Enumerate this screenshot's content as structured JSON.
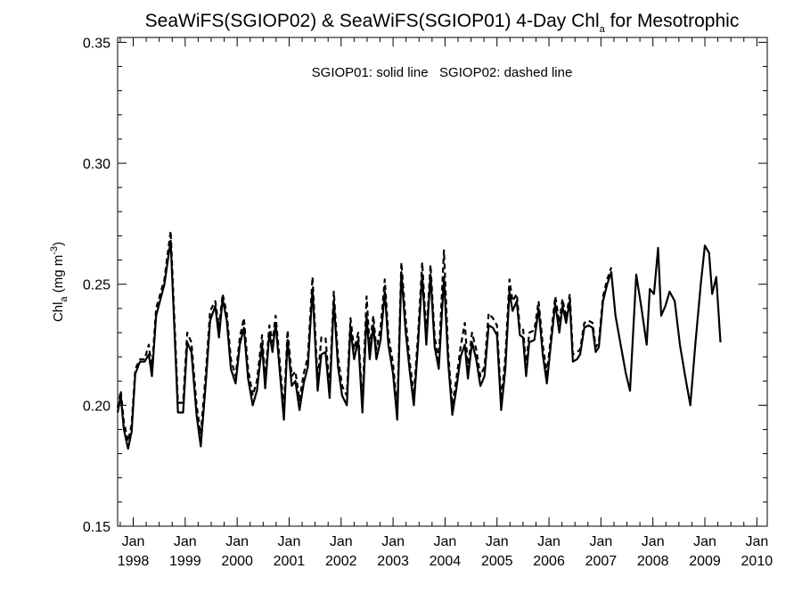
{
  "chart_data": {
    "type": "line",
    "title": "SeaWiFS(SGIOP02) & SeaWiFS(SGIOP01) 4-Day Chl",
    "title_subscript": "a",
    "title_suffix": " for Mesotrophic",
    "ylabel": "Chl",
    "ylabel_subscript": "a",
    "ylabel_units": " (mg m",
    "ylabel_superscript": "-3",
    "ylabel_close": ")",
    "annotation": "SGIOP01: solid line   SGIOP02: dashed line",
    "xlim": [
      1997.7,
      2010.2
    ],
    "ylim": [
      0.15,
      0.352
    ],
    "y_ticks": [
      {
        "value": 0.15,
        "label": "0.15"
      },
      {
        "value": 0.2,
        "label": "0.20"
      },
      {
        "value": 0.25,
        "label": "0.25"
      },
      {
        "value": 0.3,
        "label": "0.30"
      },
      {
        "value": 0.35,
        "label": "0.35"
      }
    ],
    "x_ticks": [
      {
        "value": 1998,
        "month": "Jan",
        "year": "1998"
      },
      {
        "value": 1999,
        "month": "Jan",
        "year": "1999"
      },
      {
        "value": 2000,
        "month": "Jan",
        "year": "2000"
      },
      {
        "value": 2001,
        "month": "Jan",
        "year": "2001"
      },
      {
        "value": 2002,
        "month": "Jan",
        "year": "2002"
      },
      {
        "value": 2003,
        "month": "Jan",
        "year": "2003"
      },
      {
        "value": 2004,
        "month": "Jan",
        "year": "2004"
      },
      {
        "value": 2005,
        "month": "Jan",
        "year": "2005"
      },
      {
        "value": 2006,
        "month": "Jan",
        "year": "2006"
      },
      {
        "value": 2007,
        "month": "Jan",
        "year": "2007"
      },
      {
        "value": 2008,
        "month": "Jan",
        "year": "2008"
      },
      {
        "value": 2009,
        "month": "Jan",
        "year": "2009"
      },
      {
        "value": 2010,
        "month": "Jan",
        "year": "2010"
      }
    ],
    "grid": false,
    "series": [
      {
        "name": "SGIOP01",
        "style": "solid",
        "color": "#000000",
        "points": [
          [
            1997.7,
            0.197
          ],
          [
            1997.76,
            0.204
          ],
          [
            1997.82,
            0.19
          ],
          [
            1997.9,
            0.182
          ],
          [
            1997.97,
            0.189
          ],
          [
            1998.04,
            0.213
          ],
          [
            1998.13,
            0.218
          ],
          [
            1998.22,
            0.218
          ],
          [
            1998.3,
            0.221
          ],
          [
            1998.36,
            0.212
          ],
          [
            1998.44,
            0.237
          ],
          [
            1998.6,
            0.25
          ],
          [
            1998.72,
            0.268
          ],
          [
            1998.86,
            0.197
          ],
          [
            1998.96,
            0.197
          ],
          [
            1999.04,
            0.226
          ],
          [
            1999.12,
            0.222
          ],
          [
            1999.22,
            0.196
          ],
          [
            1999.3,
            0.183
          ],
          [
            1999.4,
            0.21
          ],
          [
            1999.48,
            0.235
          ],
          [
            1999.58,
            0.241
          ],
          [
            1999.65,
            0.228
          ],
          [
            1999.72,
            0.244
          ],
          [
            1999.8,
            0.235
          ],
          [
            1999.88,
            0.215
          ],
          [
            1999.97,
            0.209
          ],
          [
            2000.05,
            0.225
          ],
          [
            2000.13,
            0.232
          ],
          [
            2000.21,
            0.211
          ],
          [
            2000.3,
            0.2
          ],
          [
            2000.38,
            0.206
          ],
          [
            2000.48,
            0.225
          ],
          [
            2000.54,
            0.207
          ],
          [
            2000.62,
            0.23
          ],
          [
            2000.68,
            0.222
          ],
          [
            2000.74,
            0.234
          ],
          [
            2000.8,
            0.219
          ],
          [
            2000.9,
            0.194
          ],
          [
            2000.97,
            0.227
          ],
          [
            2001.05,
            0.208
          ],
          [
            2001.12,
            0.21
          ],
          [
            2001.2,
            0.198
          ],
          [
            2001.28,
            0.209
          ],
          [
            2001.36,
            0.216
          ],
          [
            2001.45,
            0.248
          ],
          [
            2001.55,
            0.206
          ],
          [
            2001.62,
            0.221
          ],
          [
            2001.7,
            0.222
          ],
          [
            2001.78,
            0.203
          ],
          [
            2001.86,
            0.243
          ],
          [
            2001.94,
            0.216
          ],
          [
            2002.02,
            0.204
          ],
          [
            2002.11,
            0.2
          ],
          [
            2002.18,
            0.232
          ],
          [
            2002.25,
            0.219
          ],
          [
            2002.33,
            0.227
          ],
          [
            2002.41,
            0.197
          ],
          [
            2002.49,
            0.237
          ],
          [
            2002.55,
            0.219
          ],
          [
            2002.62,
            0.233
          ],
          [
            2002.68,
            0.219
          ],
          [
            2002.76,
            0.227
          ],
          [
            2002.84,
            0.247
          ],
          [
            2002.91,
            0.225
          ],
          [
            2003.0,
            0.213
          ],
          [
            2003.08,
            0.194
          ],
          [
            2003.16,
            0.255
          ],
          [
            2003.24,
            0.231
          ],
          [
            2003.32,
            0.214
          ],
          [
            2003.4,
            0.2
          ],
          [
            2003.48,
            0.225
          ],
          [
            2003.56,
            0.254
          ],
          [
            2003.64,
            0.225
          ],
          [
            2003.72,
            0.254
          ],
          [
            2003.8,
            0.224
          ],
          [
            2003.88,
            0.215
          ],
          [
            2003.98,
            0.253
          ],
          [
            2004.06,
            0.218
          ],
          [
            2004.14,
            0.196
          ],
          [
            2004.22,
            0.207
          ],
          [
            2004.3,
            0.22
          ],
          [
            2004.38,
            0.225
          ],
          [
            2004.44,
            0.211
          ],
          [
            2004.52,
            0.226
          ],
          [
            2004.6,
            0.219
          ],
          [
            2004.68,
            0.208
          ],
          [
            2004.76,
            0.212
          ],
          [
            2004.84,
            0.233
          ],
          [
            2004.92,
            0.232
          ],
          [
            2005.0,
            0.229
          ],
          [
            2005.08,
            0.198
          ],
          [
            2005.16,
            0.215
          ],
          [
            2005.24,
            0.247
          ],
          [
            2005.3,
            0.239
          ],
          [
            2005.38,
            0.243
          ],
          [
            2005.44,
            0.229
          ],
          [
            2005.5,
            0.228
          ],
          [
            2005.56,
            0.212
          ],
          [
            2005.62,
            0.226
          ],
          [
            2005.72,
            0.227
          ],
          [
            2005.8,
            0.24
          ],
          [
            2005.88,
            0.221
          ],
          [
            2005.96,
            0.209
          ],
          [
            2006.04,
            0.226
          ],
          [
            2006.12,
            0.242
          ],
          [
            2006.2,
            0.23
          ],
          [
            2006.26,
            0.241
          ],
          [
            2006.33,
            0.234
          ],
          [
            2006.4,
            0.243
          ],
          [
            2006.46,
            0.218
          ],
          [
            2006.54,
            0.219
          ],
          [
            2006.6,
            0.221
          ],
          [
            2006.68,
            0.232
          ],
          [
            2006.76,
            0.233
          ],
          [
            2006.84,
            0.232
          ],
          [
            2006.9,
            0.222
          ],
          [
            2006.96,
            0.224
          ],
          [
            2007.04,
            0.243
          ],
          [
            2007.12,
            0.25
          ],
          [
            2007.2,
            0.255
          ],
          [
            2007.28,
            0.237
          ],
          [
            2007.38,
            0.225
          ],
          [
            2007.48,
            0.213
          ],
          [
            2007.56,
            0.206
          ],
          [
            2007.68,
            0.254
          ],
          [
            2007.78,
            0.24
          ],
          [
            2007.88,
            0.225
          ],
          [
            2007.94,
            0.248
          ],
          [
            2008.02,
            0.246
          ],
          [
            2008.1,
            0.265
          ],
          [
            2008.16,
            0.237
          ],
          [
            2008.24,
            0.241
          ],
          [
            2008.32,
            0.247
          ],
          [
            2008.42,
            0.243
          ],
          [
            2008.52,
            0.225
          ],
          [
            2008.62,
            0.212
          ],
          [
            2008.72,
            0.2
          ],
          [
            2008.82,
            0.226
          ],
          [
            2008.92,
            0.25
          ],
          [
            2009.0,
            0.266
          ],
          [
            2009.08,
            0.263
          ],
          [
            2009.14,
            0.246
          ],
          [
            2009.22,
            0.253
          ],
          [
            2009.3,
            0.226
          ]
        ]
      },
      {
        "name": "SGIOP02",
        "style": "dashed",
        "color": "#000000",
        "points": [
          [
            1997.7,
            0.199
          ],
          [
            1997.76,
            0.206
          ],
          [
            1997.82,
            0.193
          ],
          [
            1997.9,
            0.185
          ],
          [
            1997.97,
            0.192
          ],
          [
            1998.04,
            0.215
          ],
          [
            1998.13,
            0.219
          ],
          [
            1998.22,
            0.219
          ],
          [
            1998.3,
            0.225
          ],
          [
            1998.36,
            0.215
          ],
          [
            1998.44,
            0.24
          ],
          [
            1998.6,
            0.252
          ],
          [
            1998.72,
            0.272
          ],
          [
            1998.86,
            0.201
          ],
          [
            1998.96,
            0.201
          ],
          [
            1999.04,
            0.23
          ],
          [
            1999.12,
            0.226
          ],
          [
            1999.22,
            0.2
          ],
          [
            1999.3,
            0.188
          ],
          [
            1999.4,
            0.214
          ],
          [
            1999.48,
            0.239
          ],
          [
            1999.58,
            0.243
          ],
          [
            1999.65,
            0.232
          ],
          [
            1999.72,
            0.246
          ],
          [
            1999.8,
            0.238
          ],
          [
            1999.88,
            0.219
          ],
          [
            1999.97,
            0.212
          ],
          [
            2000.05,
            0.228
          ],
          [
            2000.13,
            0.236
          ],
          [
            2000.21,
            0.215
          ],
          [
            2000.3,
            0.204
          ],
          [
            2000.38,
            0.21
          ],
          [
            2000.48,
            0.229
          ],
          [
            2000.54,
            0.211
          ],
          [
            2000.62,
            0.233
          ],
          [
            2000.68,
            0.226
          ],
          [
            2000.74,
            0.237
          ],
          [
            2000.8,
            0.223
          ],
          [
            2000.9,
            0.198
          ],
          [
            2000.97,
            0.231
          ],
          [
            2001.05,
            0.212
          ],
          [
            2001.12,
            0.214
          ],
          [
            2001.2,
            0.202
          ],
          [
            2001.28,
            0.213
          ],
          [
            2001.36,
            0.22
          ],
          [
            2001.45,
            0.253
          ],
          [
            2001.55,
            0.21
          ],
          [
            2001.62,
            0.228
          ],
          [
            2001.7,
            0.228
          ],
          [
            2001.78,
            0.207
          ],
          [
            2001.86,
            0.247
          ],
          [
            2001.94,
            0.22
          ],
          [
            2002.02,
            0.208
          ],
          [
            2002.11,
            0.204
          ],
          [
            2002.18,
            0.236
          ],
          [
            2002.25,
            0.223
          ],
          [
            2002.33,
            0.23
          ],
          [
            2002.41,
            0.201
          ],
          [
            2002.49,
            0.245
          ],
          [
            2002.55,
            0.224
          ],
          [
            2002.62,
            0.237
          ],
          [
            2002.68,
            0.223
          ],
          [
            2002.76,
            0.232
          ],
          [
            2002.84,
            0.252
          ],
          [
            2002.91,
            0.229
          ],
          [
            2003.0,
            0.217
          ],
          [
            2003.08,
            0.198
          ],
          [
            2003.16,
            0.259
          ],
          [
            2003.24,
            0.236
          ],
          [
            2003.32,
            0.218
          ],
          [
            2003.4,
            0.204
          ],
          [
            2003.48,
            0.229
          ],
          [
            2003.56,
            0.259
          ],
          [
            2003.64,
            0.229
          ],
          [
            2003.72,
            0.258
          ],
          [
            2003.8,
            0.228
          ],
          [
            2003.88,
            0.219
          ],
          [
            2003.98,
            0.264
          ],
          [
            2004.06,
            0.222
          ],
          [
            2004.14,
            0.2
          ],
          [
            2004.22,
            0.211
          ],
          [
            2004.3,
            0.224
          ],
          [
            2004.38,
            0.234
          ],
          [
            2004.44,
            0.215
          ],
          [
            2004.52,
            0.23
          ],
          [
            2004.6,
            0.223
          ],
          [
            2004.68,
            0.212
          ],
          [
            2004.76,
            0.216
          ],
          [
            2004.84,
            0.238
          ],
          [
            2004.92,
            0.236
          ],
          [
            2005.0,
            0.233
          ],
          [
            2005.08,
            0.202
          ],
          [
            2005.16,
            0.22
          ],
          [
            2005.24,
            0.252
          ],
          [
            2005.3,
            0.243
          ],
          [
            2005.38,
            0.246
          ],
          [
            2005.44,
            0.232
          ],
          [
            2005.5,
            0.232
          ],
          [
            2005.56,
            0.216
          ],
          [
            2005.62,
            0.23
          ],
          [
            2005.72,
            0.231
          ],
          [
            2005.8,
            0.243
          ],
          [
            2005.88,
            0.225
          ],
          [
            2005.96,
            0.213
          ],
          [
            2006.04,
            0.229
          ],
          [
            2006.12,
            0.245
          ],
          [
            2006.2,
            0.234
          ],
          [
            2006.26,
            0.244
          ],
          [
            2006.33,
            0.236
          ],
          [
            2006.4,
            0.246
          ],
          [
            2006.46,
            0.221
          ],
          [
            2006.54,
            0.222
          ],
          [
            2006.6,
            0.223
          ],
          [
            2006.68,
            0.234
          ],
          [
            2006.76,
            0.235
          ],
          [
            2006.84,
            0.234
          ],
          [
            2006.9,
            0.224
          ],
          [
            2006.96,
            0.226
          ],
          [
            2007.04,
            0.245
          ],
          [
            2007.12,
            0.252
          ],
          [
            2007.2,
            0.257
          ]
        ]
      }
    ]
  }
}
